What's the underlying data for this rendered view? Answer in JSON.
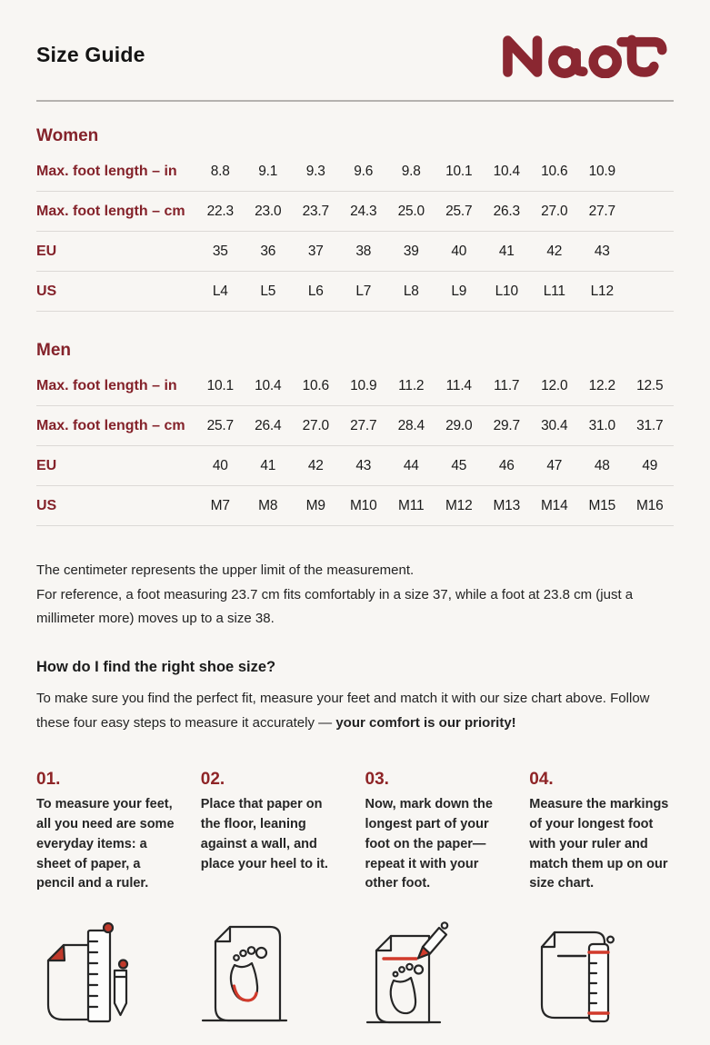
{
  "page": {
    "title": "Size Guide",
    "brand": "Naot"
  },
  "colors": {
    "background": "#f8f6f3",
    "heading_red": "#84222a",
    "logo_red": "#8a2731",
    "icon_red": "#d13a2b",
    "text": "#1e1e1e",
    "divider_strong": "#b5b2af",
    "divider_light": "#dcd9d6"
  },
  "women": {
    "heading": "Women",
    "rows": [
      {
        "label": "Max. foot length – in",
        "values": [
          "8.8",
          "9.1",
          "9.3",
          "9.6",
          "9.8",
          "10.1",
          "10.4",
          "10.6",
          "10.9"
        ]
      },
      {
        "label": "Max. foot length – cm",
        "values": [
          "22.3",
          "23.0",
          "23.7",
          "24.3",
          "25.0",
          "25.7",
          "26.3",
          "27.0",
          "27.7"
        ]
      },
      {
        "label": "EU",
        "values": [
          "35",
          "36",
          "37",
          "38",
          "39",
          "40",
          "41",
          "42",
          "43"
        ]
      },
      {
        "label": "US",
        "values": [
          "L4",
          "L5",
          "L6",
          "L7",
          "L8",
          "L9",
          "L10",
          "L11",
          "L12"
        ]
      }
    ]
  },
  "men": {
    "heading": "Men",
    "rows": [
      {
        "label": "Max. foot length – in",
        "values": [
          "10.1",
          "10.4",
          "10.6",
          "10.9",
          "11.2",
          "11.4",
          "11.7",
          "12.0",
          "12.2",
          "12.5"
        ]
      },
      {
        "label": "Max. foot length – cm",
        "values": [
          "25.7",
          "26.4",
          "27.0",
          "27.7",
          "28.4",
          "29.0",
          "29.7",
          "30.4",
          "31.0",
          "31.7"
        ]
      },
      {
        "label": "EU",
        "values": [
          "40",
          "41",
          "42",
          "43",
          "44",
          "45",
          "46",
          "47",
          "48",
          "49"
        ]
      },
      {
        "label": "US",
        "values": [
          "M7",
          "M8",
          "M9",
          "M10",
          "M11",
          "M12",
          "M13",
          "M14",
          "M15",
          "M16"
        ]
      }
    ]
  },
  "notes": {
    "line1": "The centimeter represents the upper limit of the measurement.",
    "rest": "For reference, a foot measuring 23.7 cm fits comfortably in a size 37, while a foot at 23.8 cm (just a millimeter more) moves up to a size 38."
  },
  "how_to": {
    "heading": "How do I find the right shoe size?",
    "intro_normal": "To make sure you find the perfect fit, measure your feet and match it with our size chart above. Follow these four easy steps to measure it accurately — ",
    "intro_bold": "your comfort is our priority!"
  },
  "steps": [
    {
      "number": "01.",
      "text": "To measure your feet, all you need are some everyday items: a sheet of paper, a pencil and a ruler.",
      "icon": "paper-pencil-ruler-icon"
    },
    {
      "number": "02.",
      "text": "Place that paper on the floor, leaning against a wall, and place your heel to it.",
      "icon": "paper-footprint-wall-icon"
    },
    {
      "number": "03.",
      "text": "Now, mark down the longest part of your foot on the paper—repeat it with your other foot.",
      "icon": "paper-footprint-pencil-mark-icon"
    },
    {
      "number": "04.",
      "text": "Measure the markings of your longest foot with your ruler and match them up on our size chart.",
      "icon": "paper-ruler-measure-icon"
    }
  ]
}
